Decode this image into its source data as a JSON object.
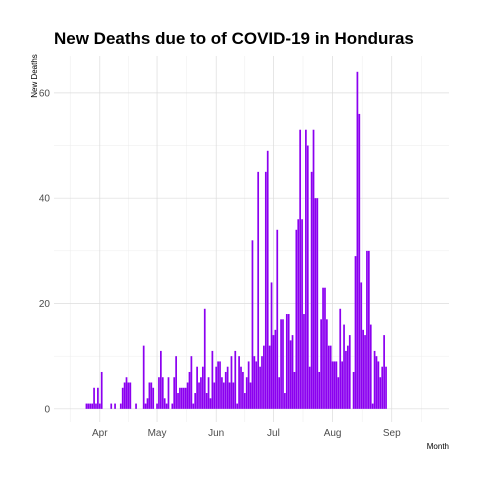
{
  "chart_data": {
    "type": "bar",
    "title": "New Deaths due to of COVID-19 in Honduras",
    "xlabel": "Month",
    "ylabel": "New Deaths",
    "x_start": "2020-03-15",
    "x_range": [
      "2020-03-08",
      "2020-10-01"
    ],
    "ylim": [
      -2.5,
      67
    ],
    "y_ticks": [
      0,
      20,
      40,
      60
    ],
    "x_ticks": [
      {
        "label": "Apr",
        "date": "2020-04-01"
      },
      {
        "label": "May",
        "date": "2020-05-01"
      },
      {
        "label": "Jun",
        "date": "2020-06-01"
      },
      {
        "label": "Jul",
        "date": "2020-07-01"
      },
      {
        "label": "Aug",
        "date": "2020-08-01"
      },
      {
        "label": "Sep",
        "date": "2020-09-01"
      }
    ],
    "grid": true,
    "legend": "none",
    "bar_color": "#8b00f0",
    "values": [
      0,
      0,
      0,
      0,
      0,
      0,
      0,
      0,
      0,
      0,
      1,
      1,
      1,
      1,
      4,
      1,
      4,
      1,
      7,
      0,
      0,
      0,
      0,
      1,
      0,
      1,
      0,
      0,
      1,
      4,
      5,
      6,
      5,
      5,
      0,
      0,
      1,
      0,
      0,
      0,
      12,
      1,
      2,
      5,
      5,
      4,
      0,
      1,
      6,
      11,
      6,
      2,
      1,
      6,
      0,
      1,
      6,
      10,
      3,
      4,
      4,
      4,
      4,
      5,
      7,
      10,
      1,
      3,
      8,
      5,
      6,
      8,
      19,
      3,
      6,
      2,
      11,
      5,
      8,
      9,
      9,
      6,
      5,
      7,
      8,
      5,
      10,
      5,
      11,
      1,
      10,
      8,
      7,
      3,
      6,
      9,
      5,
      32,
      10,
      9,
      45,
      8,
      10,
      12,
      45,
      49,
      12,
      24,
      14,
      15,
      34,
      6,
      17,
      17,
      3,
      18,
      18,
      13,
      14,
      7,
      34,
      36,
      53,
      36,
      18,
      53,
      50,
      8,
      45,
      53,
      40,
      40,
      7,
      17,
      23,
      23,
      17,
      12,
      12,
      9,
      9,
      9,
      6,
      19,
      9,
      16,
      11,
      12,
      14,
      0,
      7,
      29,
      64,
      56,
      24,
      15,
      14,
      30,
      30,
      16,
      1,
      11,
      10,
      9,
      6,
      8,
      14,
      8
    ]
  }
}
